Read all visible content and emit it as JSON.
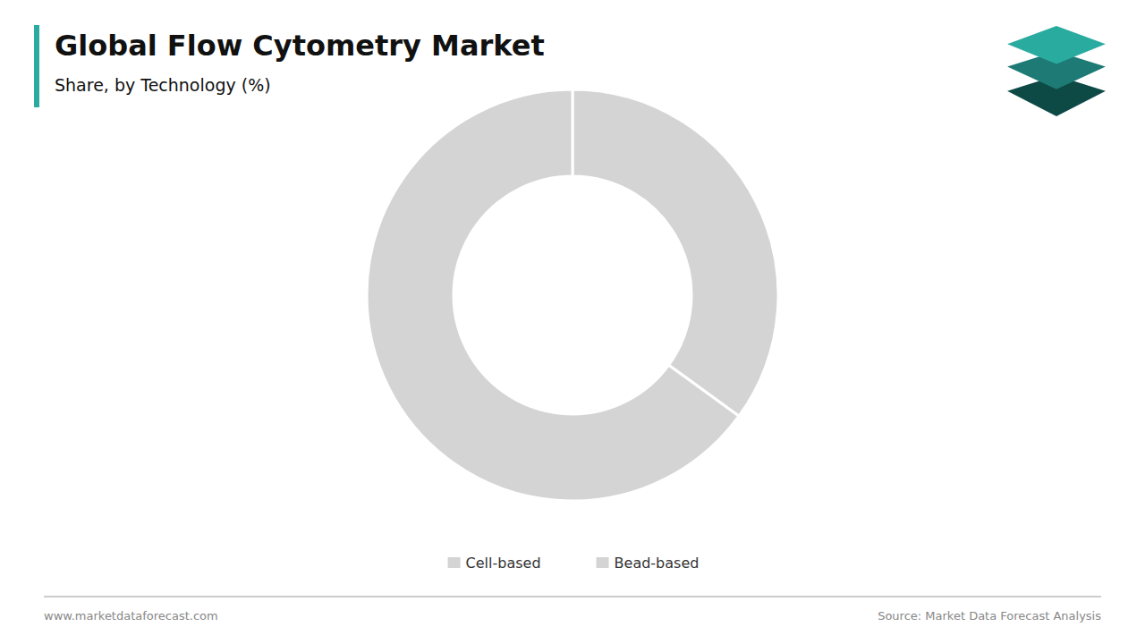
{
  "chart_data": {
    "type": "donut",
    "title": "Global Flow Cytometry Market",
    "subtitle": "Share, by Technology (%)",
    "categories": [
      "Cell-based",
      "Bead-based"
    ],
    "values": [
      35,
      65
    ],
    "colors": [
      "#d4d4d4",
      "#d4d4d4"
    ],
    "legend": "bottom",
    "annotations": [
      "www.marketdataforecast.com",
      "Source: Market Data Forecast Analysis"
    ]
  }
}
